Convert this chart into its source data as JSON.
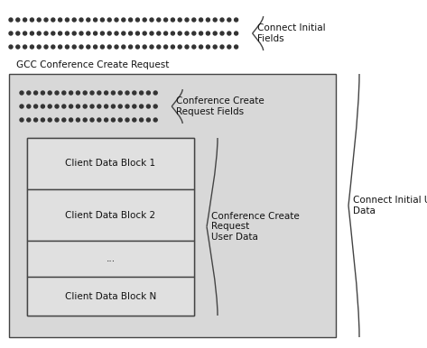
{
  "white": "#ffffff",
  "outer_bg": "#e8e8e8",
  "gcc_box_color": "#d8d8d8",
  "inner_box_color": "#cccccc",
  "block_color": "#d0d0d0",
  "block_inner_color": "#e0e0e0",
  "border_color": "#444444",
  "text_color": "#111111",
  "dot_color": "#333333",
  "connect_initial_fields_label": "Connect Initial\nFields",
  "gcc_label": "GCC Conference Create Request",
  "conf_create_req_fields_label": "Conference Create\nRequest Fields",
  "conf_create_req_userdata_label": "Conference Create\nRequest\nUser Data",
  "connect_initial_user_data_label": "Connect Initial User\nData",
  "block_labels": [
    "Client Data Block 1",
    "Client Data Block 2",
    "...",
    "Client Data Block N"
  ]
}
